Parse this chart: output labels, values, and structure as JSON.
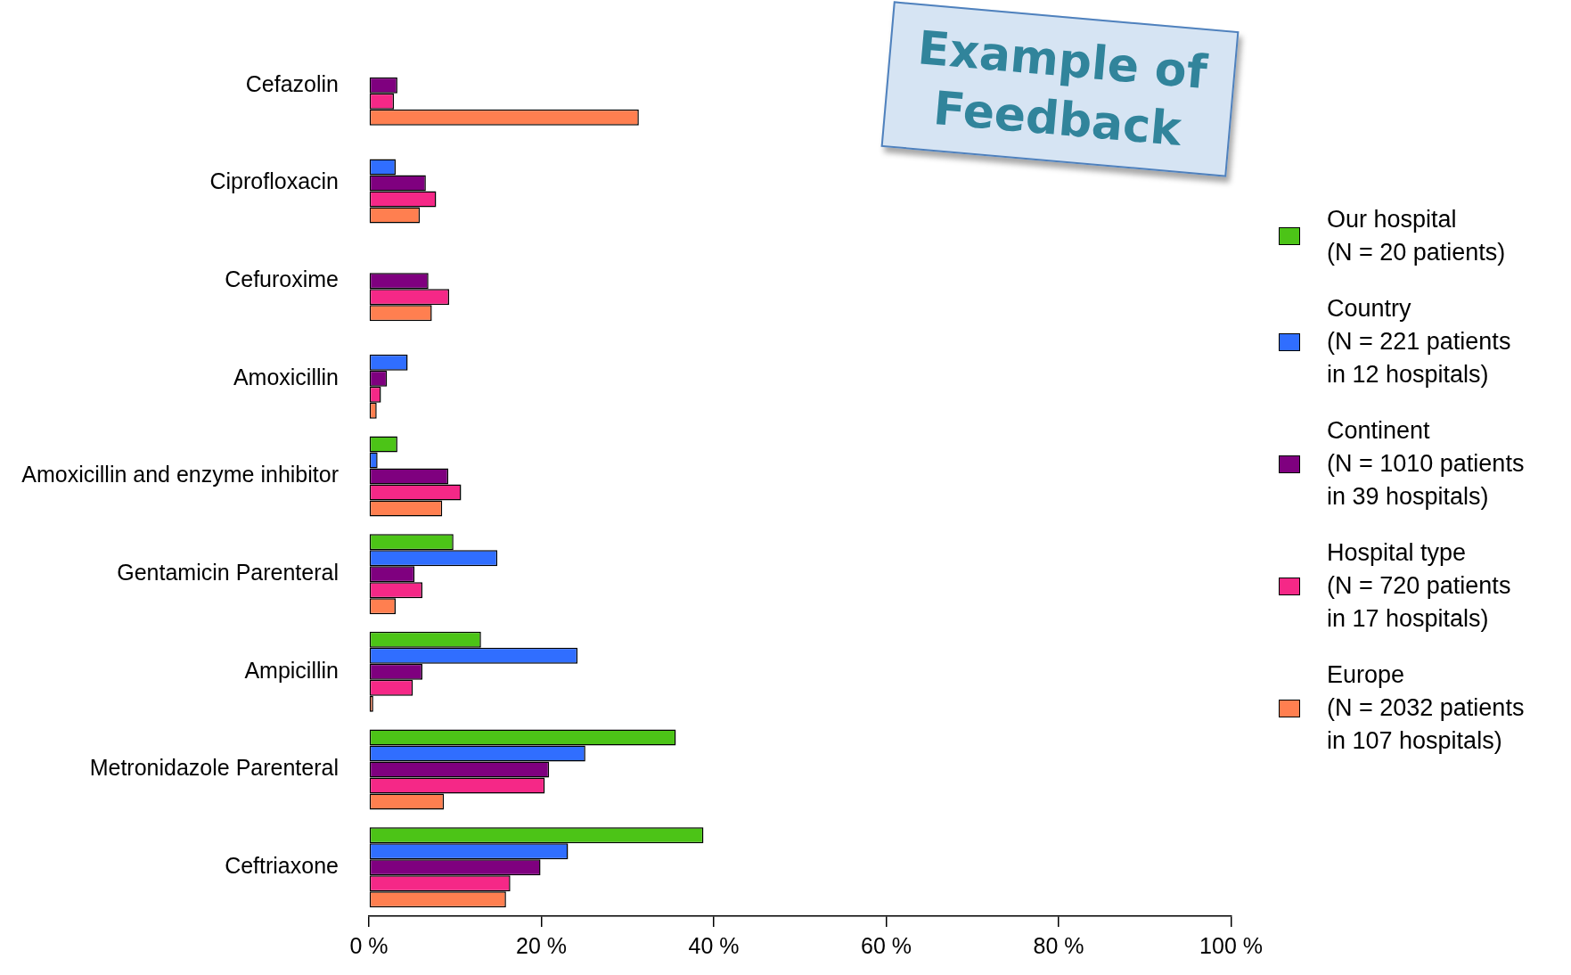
{
  "chart_data": {
    "type": "bar",
    "orientation": "horizontal",
    "categories": [
      "Cefazolin",
      "Ciprofloxacin",
      "Cefuroxime",
      "Amoxicillin",
      "Amoxicillin and enzyme inhibitor",
      "Gentamicin Parenteral",
      "Ampicillin",
      "Metronidazole Parenteral",
      "Ceftriaxone"
    ],
    "series": [
      {
        "name": "Our hospital\n(N = 20 patients)",
        "color": "#4cc417",
        "values": [
          null,
          null,
          null,
          null,
          3.3,
          9.8,
          13.0,
          35.6,
          38.8
        ]
      },
      {
        "name": "Country\n(N = 221 patients\nin 12 hospitals)",
        "color": "#306eff",
        "values": [
          null,
          3.1,
          null,
          4.5,
          1.0,
          14.9,
          24.2,
          25.1,
          23.1
        ]
      },
      {
        "name": "Continent\n(N = 1010 patients\nin 39 hospitals)",
        "color": "#7f007f",
        "values": [
          3.3,
          6.6,
          6.9,
          2.1,
          9.2,
          5.3,
          6.2,
          20.9,
          19.9
        ]
      },
      {
        "name": "Hospital type\n(N = 720 patients\nin 17 hospitals)",
        "color": "#f52887",
        "values": [
          2.9,
          7.8,
          9.3,
          1.4,
          10.7,
          6.2,
          5.1,
          20.4,
          16.4
        ]
      },
      {
        "name": "Europe\n(N = 2032 patients\nin 107 hospitals)",
        "color": "#ff7f50",
        "values": [
          31.3,
          5.9,
          7.3,
          0.9,
          8.5,
          3.1,
          0.5,
          8.7,
          15.9
        ]
      }
    ],
    "xlim": [
      0,
      100
    ],
    "xticks": [
      {
        "value": 0,
        "label": "0 %"
      },
      {
        "value": 20,
        "label": "20 %"
      },
      {
        "value": 40,
        "label": "40 %"
      },
      {
        "value": 60,
        "label": "60 %"
      },
      {
        "value": 80,
        "label": "80 %"
      },
      {
        "value": 100,
        "label": "100 %"
      }
    ],
    "grid": false,
    "legend": "right",
    "annotations": [
      "Example of\nFeedback"
    ]
  }
}
